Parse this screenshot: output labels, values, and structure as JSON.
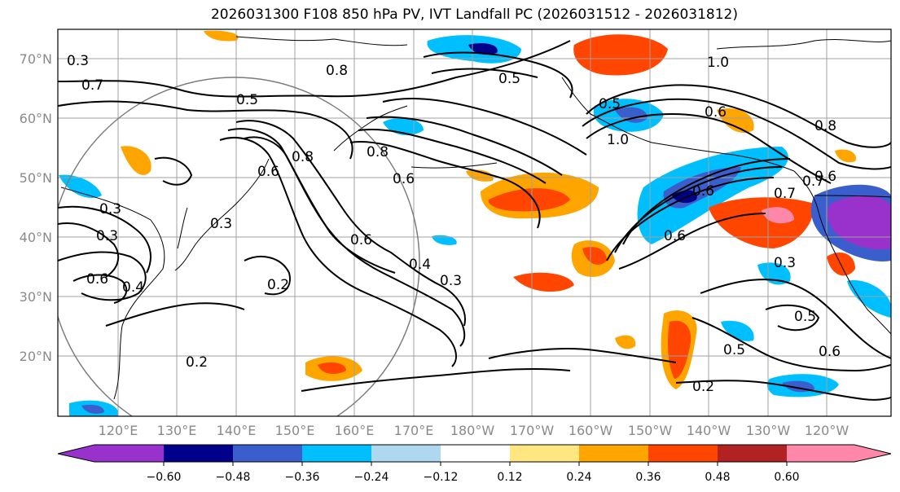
{
  "title": "2026031300 F108 850 hPa PV, IVT Landfall PC (2026031512 - 2026031812)",
  "lat_labels": [
    "70°N",
    "60°N",
    "50°N",
    "40°N",
    "30°N",
    "20°N"
  ],
  "lon_labels": [
    "120°E",
    "130°E",
    "140°E",
    "150°E",
    "160°E",
    "170°E",
    "180°W",
    "170°W",
    "160°W",
    "150°W",
    "140°W",
    "130°W",
    "120°W"
  ],
  "colorbar": {
    "colors": [
      "#9932cc",
      "#00008b",
      "#3a5fcd",
      "#00bfff",
      "#add8f0",
      "#ffffff",
      "#ffe680",
      "#ffa500",
      "#ff4500",
      "#b22222",
      "#ff88aa"
    ],
    "tick_labels": [
      "−0.60",
      "−0.48",
      "−0.36",
      "−0.24",
      "−0.12",
      "0.12",
      "0.24",
      "0.36",
      "0.48",
      "0.60"
    ]
  },
  "contour_labels": [
    "0.5",
    "0.7",
    "0.5",
    "0.8",
    "0.5",
    "1.0",
    "0.6",
    "1.0",
    "0.8",
    "0.6",
    "0.8",
    "0.6",
    "0.3",
    "0.6",
    "0.4",
    "0.3",
    "0.2",
    "0.6",
    "0.4",
    "0.3",
    "0.7",
    "0.6",
    "0.3",
    "0.5",
    "0.5",
    "0.6",
    "0.2",
    "0.6",
    "0.7",
    "0.8",
    "0.6",
    "0.2",
    "0.3",
    "0.3"
  ]
}
